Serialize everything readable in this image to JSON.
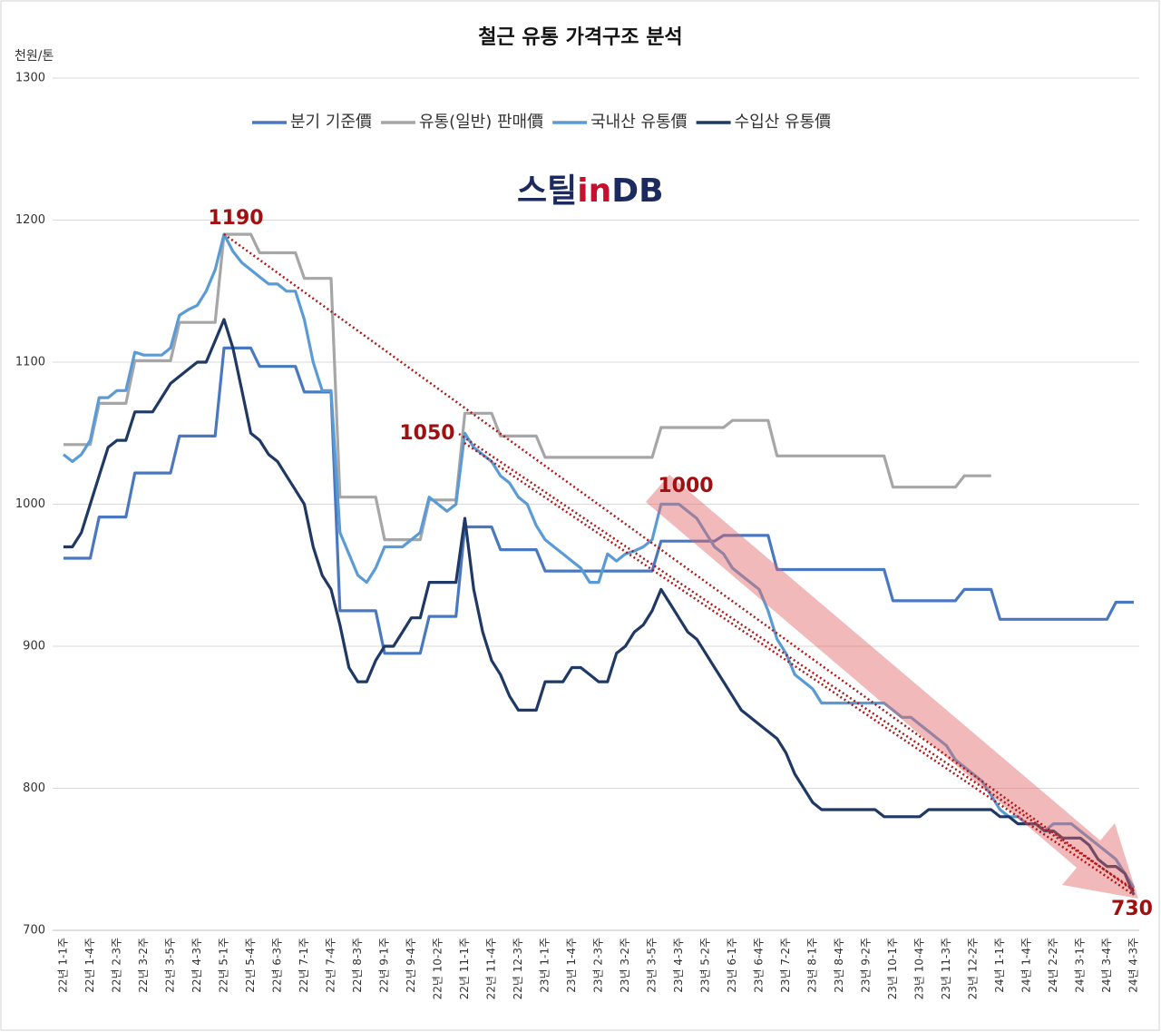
{
  "chart_data": {
    "type": "line",
    "title": "철근 유통 가격구조 분석",
    "y_axis_label": "천원/톤",
    "logo": [
      "스틸",
      "in",
      "DB"
    ],
    "categories": [
      "22년 1-1주",
      null,
      null,
      "22년 1-4주",
      null,
      null,
      "22년 2-3주",
      null,
      null,
      "22년 3-2주",
      null,
      null,
      "22년 3-5주",
      null,
      null,
      "22년 4-3주",
      null,
      null,
      "22년 5-1주",
      null,
      null,
      "22년 5-4주",
      null,
      null,
      "22년 6-3주",
      null,
      null,
      "22년 7-1주",
      null,
      null,
      "22년 7-4주",
      null,
      null,
      "22년 8-3주",
      null,
      null,
      "22년 9-1주",
      null,
      null,
      "22년 9-4주",
      null,
      null,
      "22년 10-2주",
      null,
      null,
      "22년 11-1주",
      null,
      null,
      "22년 11-4주",
      null,
      null,
      "22년 12-3주",
      null,
      null,
      "23년 1-1주",
      null,
      null,
      "23년 1-4주",
      null,
      null,
      "23년 2-3주",
      null,
      null,
      "23년 3-2주",
      null,
      null,
      "23년 3-5주",
      null,
      null,
      "23년 4-3주",
      null,
      null,
      "23년 5-2주",
      null,
      null,
      "23년 6-1주",
      null,
      null,
      "23년 6-4주",
      null,
      null,
      "23년 7-2주",
      null,
      null,
      "23년 8-1주",
      null,
      null,
      "23년 8-4주",
      null,
      null,
      "23년 9-2주",
      null,
      null,
      "23년 10-1주",
      null,
      null,
      "23년 10-4주",
      null,
      null,
      "23년 11-3주",
      null,
      null,
      "23년 12-2주",
      null,
      null,
      "24년 1-1주",
      null,
      null,
      "24년 1-4주",
      null,
      null,
      "24년 2-2주",
      null,
      null,
      "24년 3-1주",
      null,
      null,
      "24년 3-4주",
      null,
      null,
      "24년 4-3주"
    ],
    "series": [
      {
        "name": "분기 기준價",
        "color": "#4a78c0",
        "values": [
          962,
          962,
          962,
          962,
          991,
          991,
          991,
          991,
          1022,
          1022,
          1022,
          1022,
          1022,
          1048,
          1048,
          1048,
          1048,
          1048,
          1110,
          1110,
          1110,
          1110,
          1097,
          1097,
          1097,
          1097,
          1097,
          1079,
          1079,
          1079,
          1079,
          925,
          925,
          925,
          925,
          925,
          895,
          895,
          895,
          895,
          895,
          921,
          921,
          921,
          921,
          984,
          984,
          984,
          984,
          968,
          968,
          968,
          968,
          968,
          953,
          953,
          953,
          953,
          953,
          953,
          953,
          953,
          953,
          953,
          953,
          953,
          953,
          974,
          974,
          974,
          974,
          974,
          974,
          974,
          978,
          978,
          978,
          978,
          978,
          978,
          954,
          954,
          954,
          954,
          954,
          954,
          954,
          954,
          954,
          954,
          954,
          954,
          954,
          932,
          932,
          932,
          932,
          932,
          932,
          932,
          932,
          940,
          940,
          940,
          940,
          919,
          919,
          919,
          919,
          919,
          919,
          919,
          919,
          919,
          919,
          919,
          919,
          919,
          931,
          931,
          931
        ]
      },
      {
        "name": "유통(일반) 판매價",
        "color": "#a6a6a6",
        "values": [
          1042,
          1042,
          1042,
          1042,
          1071,
          1071,
          1071,
          1071,
          1101,
          1101,
          1101,
          1101,
          1101,
          1128,
          1128,
          1128,
          1128,
          1128,
          1190,
          1190,
          1190,
          1190,
          1177,
          1177,
          1177,
          1177,
          1177,
          1159,
          1159,
          1159,
          1159,
          1005,
          1005,
          1005,
          1005,
          1005,
          975,
          975,
          975,
          975,
          975,
          1003,
          1003,
          1003,
          1003,
          1064,
          1064,
          1064,
          1064,
          1048,
          1048,
          1048,
          1048,
          1048,
          1033,
          1033,
          1033,
          1033,
          1033,
          1033,
          1033,
          1033,
          1033,
          1033,
          1033,
          1033,
          1033,
          1054,
          1054,
          1054,
          1054,
          1054,
          1054,
          1054,
          1054,
          1059,
          1059,
          1059,
          1059,
          1059,
          1034,
          1034,
          1034,
          1034,
          1034,
          1034,
          1034,
          1034,
          1034,
          1034,
          1034,
          1034,
          1034,
          1012,
          1012,
          1012,
          1012,
          1012,
          1012,
          1012,
          1012,
          1020,
          1020,
          1020,
          1020,
          null,
          null,
          null,
          null,
          null,
          null,
          null,
          null,
          null,
          null,
          null,
          null,
          null,
          null,
          null,
          null
        ]
      },
      {
        "name": "국내산 유통價",
        "color": "#5b9bd5",
        "values": [
          1035,
          1030,
          1035,
          1045,
          1075,
          1075,
          1080,
          1080,
          1107,
          1105,
          1105,
          1105,
          1110,
          1133,
          1137,
          1140,
          1150,
          1165,
          1190,
          1178,
          1170,
          1165,
          1160,
          1155,
          1155,
          1150,
          1150,
          1130,
          1100,
          1080,
          1080,
          980,
          965,
          950,
          945,
          955,
          970,
          970,
          970,
          975,
          980,
          1005,
          1000,
          995,
          1000,
          1050,
          1040,
          1035,
          1030,
          1020,
          1015,
          1005,
          1000,
          985,
          975,
          970,
          965,
          960,
          955,
          945,
          945,
          965,
          960,
          965,
          967,
          970,
          975,
          1000,
          1000,
          1000,
          995,
          990,
          980,
          970,
          965,
          955,
          950,
          945,
          940,
          925,
          905,
          895,
          880,
          875,
          870,
          860,
          860,
          860,
          860,
          860,
          860,
          860,
          860,
          855,
          850,
          850,
          845,
          840,
          835,
          830,
          820,
          815,
          810,
          805,
          795,
          785,
          780,
          780,
          775,
          775,
          770,
          775,
          775,
          775,
          770,
          765,
          760,
          755,
          750,
          740,
          730
        ]
      },
      {
        "name": "수입산 유통價",
        "color": "#1f3864",
        "values": [
          970,
          970,
          980,
          1000,
          1020,
          1040,
          1045,
          1045,
          1065,
          1065,
          1065,
          1075,
          1085,
          1090,
          1095,
          1100,
          1100,
          1115,
          1130,
          1110,
          1080,
          1050,
          1045,
          1035,
          1030,
          1020,
          1010,
          1000,
          970,
          950,
          940,
          915,
          885,
          875,
          875,
          890,
          900,
          900,
          910,
          920,
          920,
          945,
          945,
          945,
          945,
          990,
          940,
          910,
          890,
          880,
          865,
          855,
          855,
          855,
          875,
          875,
          875,
          885,
          885,
          880,
          875,
          875,
          895,
          900,
          910,
          915,
          925,
          940,
          930,
          920,
          910,
          905,
          895,
          885,
          875,
          865,
          855,
          850,
          845,
          840,
          835,
          825,
          810,
          800,
          790,
          785,
          785,
          785,
          785,
          785,
          785,
          785,
          780,
          780,
          780,
          780,
          780,
          785,
          785,
          785,
          785,
          785,
          785,
          785,
          785,
          780,
          780,
          775,
          775,
          775,
          770,
          770,
          765,
          765,
          765,
          760,
          750,
          745,
          745,
          740,
          725
        ]
      }
    ],
    "ylim": [
      700,
      1300
    ],
    "yticks": [
      700,
      800,
      900,
      1000,
      1100,
      1200,
      1300
    ],
    "grid": true,
    "legend": "top",
    "annotations": [
      "1190",
      "1050",
      "1000",
      "730"
    ]
  }
}
